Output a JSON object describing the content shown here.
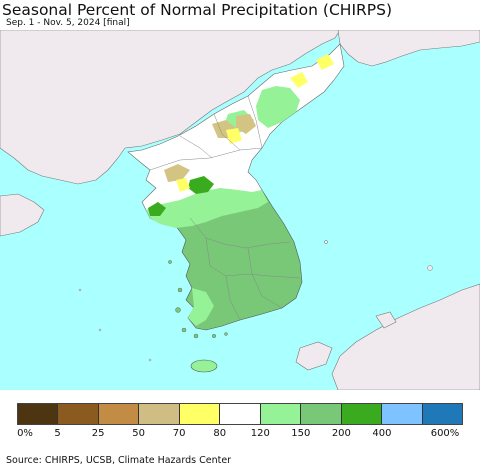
{
  "title": "Seasonal Percent of Normal Precipitation (CHIRPS)",
  "subtitle": "Sep. 1 - Nov. 5, 2024 [final]",
  "source": "Source: CHIRPS, UCSB, Climate Hazards Center",
  "map_colors": {
    "ocean": "#aaffff",
    "foreign_land": "#f0eaef",
    "near_normal": "#ffffff",
    "light_green": "#96f296",
    "green": "#78c878",
    "dark_green": "#3aaa1e",
    "tan": "#d4c484",
    "yellow": "#ffff66",
    "border_line": "#888888"
  },
  "legend": {
    "colors": [
      "#4d3511",
      "#8b5a1e",
      "#c28c44",
      "#d0bd83",
      "#ffff66",
      "#ffffff",
      "#96f296",
      "#78c878",
      "#3aaa1e",
      "#7ec3ff",
      "#1f78b8"
    ],
    "labels": [
      "0%",
      "5",
      "25",
      "50",
      "70",
      "80",
      "120",
      "150",
      "200",
      "400",
      "600%"
    ]
  }
}
